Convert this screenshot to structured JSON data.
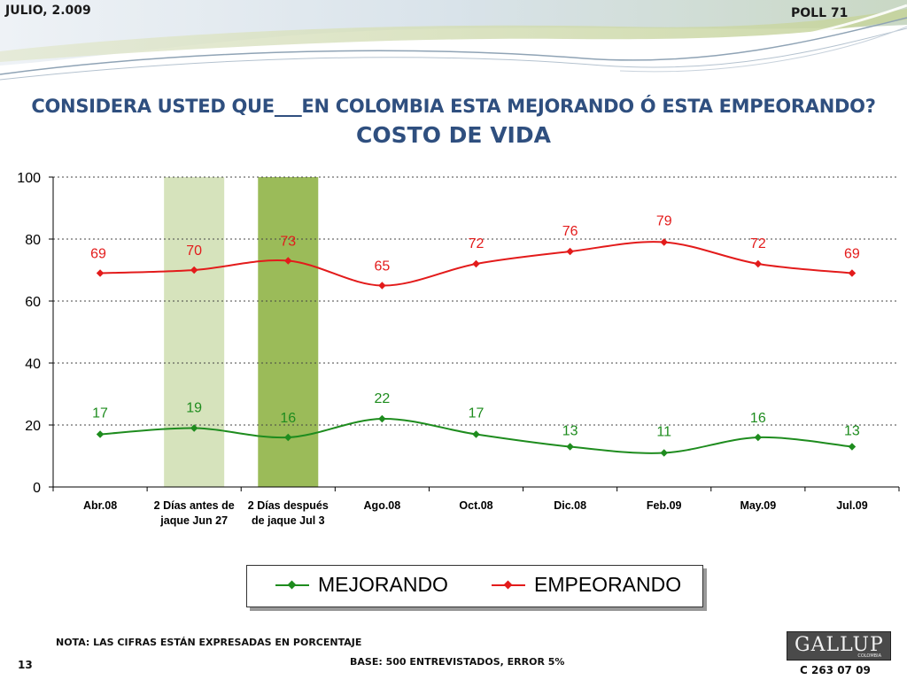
{
  "header": {
    "date": "JULIO, 2.009",
    "poll": "POLL 71"
  },
  "title": "CONSIDERA USTED QUE___EN COLOMBIA ESTA MEJORANDO Ó ESTA EMPEORANDO?",
  "subtitle": "COSTO DE VIDA",
  "colors": {
    "title": "#2f4f7f",
    "mejorando": "#1e8c1e",
    "empeorando": "#e31b1b",
    "band_light": "#d6e3bc",
    "band_dark": "#9bbb59",
    "grid": "#444444"
  },
  "chart_data": {
    "type": "line",
    "categories": [
      "Abr.08",
      "2 Días antes de jaque Jun 27",
      "2 Días después de jaque Jul 3",
      "Ago.08",
      "Oct.08",
      "Dic.08",
      "Feb.09",
      "May.09",
      "Jul.09"
    ],
    "category_lines": [
      [
        "Abr.08"
      ],
      [
        "2 Días antes de",
        "jaque Jun 27"
      ],
      [
        "2 Días después",
        "de jaque Jul 3"
      ],
      [
        "Ago.08"
      ],
      [
        "Oct.08"
      ],
      [
        "Dic.08"
      ],
      [
        "Feb.09"
      ],
      [
        "May.09"
      ],
      [
        "Jul.09"
      ]
    ],
    "series": [
      {
        "name": "MEJORANDO",
        "color": "#1e8c1e",
        "values": [
          17,
          19,
          16,
          22,
          17,
          13,
          11,
          16,
          13
        ]
      },
      {
        "name": "EMPEORANDO",
        "color": "#e31b1b",
        "values": [
          69,
          70,
          73,
          65,
          72,
          76,
          79,
          72,
          69
        ]
      }
    ],
    "highlighted_categories": [
      {
        "index": 1,
        "color": "#d6e3bc"
      },
      {
        "index": 2,
        "color": "#9bbb59"
      }
    ],
    "ylim": [
      0,
      100
    ],
    "yticks": [
      0,
      20,
      40,
      60,
      80,
      100
    ],
    "grid": "dotted horizontal",
    "legend": "bottom"
  },
  "legend": {
    "mejorando": "MEJORANDO",
    "empeorando": "EMPEORANDO"
  },
  "footer": {
    "note": "NOTA: LAS CIFRAS ESTÁN EXPRESADAS EN PORCENTAJE",
    "base": "BASE: 500 ENTREVISTADOS, ERROR 5%",
    "page_number": "13",
    "code": "C 263 07 09",
    "logo_text": "GALLUP",
    "logo_sub": "COLOMBIA"
  }
}
